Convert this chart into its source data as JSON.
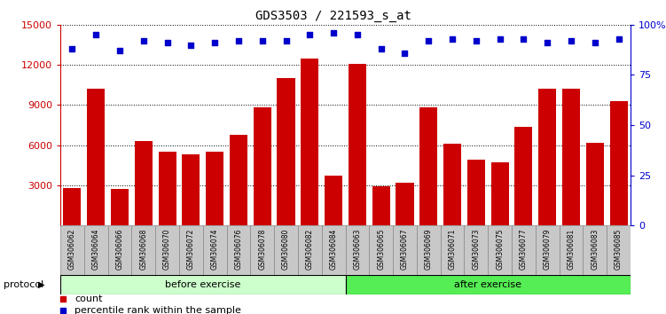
{
  "title": "GDS3503 / 221593_s_at",
  "categories": [
    "GSM306062",
    "GSM306064",
    "GSM306066",
    "GSM306068",
    "GSM306070",
    "GSM306072",
    "GSM306074",
    "GSM306076",
    "GSM306078",
    "GSM306080",
    "GSM306082",
    "GSM306084",
    "GSM306063",
    "GSM306065",
    "GSM306067",
    "GSM306069",
    "GSM306071",
    "GSM306073",
    "GSM306075",
    "GSM306077",
    "GSM306079",
    "GSM306081",
    "GSM306083",
    "GSM306085"
  ],
  "bar_values": [
    2800,
    10200,
    2700,
    6300,
    5500,
    5300,
    5500,
    6800,
    8800,
    11000,
    12500,
    3700,
    12100,
    2900,
    3200,
    8800,
    6100,
    4900,
    4700,
    7400,
    10200,
    10200,
    6200,
    9300
  ],
  "percentile_values": [
    88,
    95,
    87,
    92,
    91,
    90,
    91,
    92,
    92,
    92,
    95,
    96,
    95,
    88,
    86,
    92,
    93,
    92,
    93,
    93,
    91,
    92,
    91,
    93
  ],
  "bar_color": "#cc0000",
  "dot_color": "#0000cc",
  "ylim_left": [
    0,
    15000
  ],
  "ylim_right": [
    0,
    100
  ],
  "yticks_left": [
    3000,
    6000,
    9000,
    12000,
    15000
  ],
  "yticks_right": [
    0,
    25,
    50,
    75,
    100
  ],
  "ytick_labels_right": [
    "0",
    "25",
    "50",
    "75",
    "100%"
  ],
  "before_count": 12,
  "after_count": 12,
  "before_label": "before exercise",
  "after_label": "after exercise",
  "protocol_label": "protocol",
  "before_color": "#ccffcc",
  "after_color": "#55ee55",
  "legend_count_label": "count",
  "legend_pct_label": "percentile rank within the sample",
  "bg_color": "#ffffff",
  "tick_bg_color": "#c8c8c8",
  "grid_color": "#000000"
}
